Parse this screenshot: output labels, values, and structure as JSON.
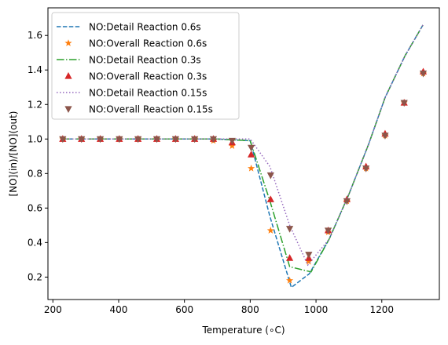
{
  "chart_data": {
    "type": "line",
    "title": "",
    "xlabel": "Temperature (∘C)",
    "ylabel": "[NO](in)/[NO](out)",
    "xlim": [
      185,
      1375
    ],
    "ylim": [
      0.07,
      1.76
    ],
    "xticks": [
      200,
      400,
      600,
      800,
      1000,
      1200
    ],
    "yticks": [
      0.2,
      0.4,
      0.6,
      0.8,
      1.0,
      1.2,
      1.4,
      1.6
    ],
    "xtick_labels": [
      "200",
      "400",
      "600",
      "800",
      "1000",
      "1200"
    ],
    "ytick_labels": [
      "0.2",
      "0.4",
      "0.6",
      "0.8",
      "1.0",
      "1.2",
      "1.4",
      "1.6"
    ],
    "grid": false,
    "legend_position": "top-left",
    "series": [
      {
        "name": "NO:Detail Reaction 0.6s",
        "kind": "line",
        "style": "dashed",
        "color": "#1f77b4",
        "x": [
          230,
          700,
          800,
          860,
          925,
          980,
          1040,
          1100,
          1160,
          1210,
          1270,
          1325
        ],
        "y": [
          1.0,
          1.0,
          0.99,
          0.55,
          0.14,
          0.22,
          0.42,
          0.68,
          0.97,
          1.24,
          1.48,
          1.66
        ]
      },
      {
        "name": "NO:Overall Reaction 0.6s",
        "kind": "scatter",
        "marker": "star",
        "color": "#ff7f0e",
        "x": [
          230,
          287,
          344,
          402,
          459,
          516,
          573,
          631,
          688,
          745,
          803,
          862,
          920,
          978,
          1037,
          1094,
          1152,
          1210,
          1268,
          1326
        ],
        "y": [
          1.0,
          1.0,
          1.0,
          1.0,
          1.0,
          1.0,
          1.0,
          1.0,
          0.99,
          0.96,
          0.83,
          0.47,
          0.18,
          0.29,
          0.46,
          0.64,
          0.83,
          1.02,
          1.21,
          1.38
        ]
      },
      {
        "name": "NO:Detail Reaction 0.3s",
        "kind": "line",
        "style": "dashdot",
        "color": "#2ca02c",
        "x": [
          230,
          700,
          800,
          860,
          920,
          985,
          1040,
          1100,
          1160,
          1210,
          1270,
          1325
        ],
        "y": [
          1.0,
          1.0,
          0.99,
          0.64,
          0.26,
          0.23,
          0.42,
          0.68,
          0.97,
          1.24,
          1.48,
          1.66
        ]
      },
      {
        "name": "NO:Overall Reaction 0.3s",
        "kind": "scatter",
        "marker": "triangle-up",
        "color": "#d62728",
        "x": [
          230,
          287,
          344,
          402,
          459,
          516,
          573,
          631,
          688,
          745,
          803,
          862,
          920,
          978,
          1037,
          1094,
          1152,
          1210,
          1268,
          1326
        ],
        "y": [
          1.0,
          1.0,
          1.0,
          1.0,
          1.0,
          1.0,
          1.0,
          1.0,
          1.0,
          0.98,
          0.91,
          0.65,
          0.31,
          0.31,
          0.47,
          0.65,
          0.84,
          1.03,
          1.21,
          1.39
        ]
      },
      {
        "name": "NO:Detail Reaction 0.15s",
        "kind": "line",
        "style": "dotted",
        "color": "#9467bd",
        "x": [
          230,
          700,
          800,
          860,
          920,
          975,
          1040,
          1100,
          1160,
          1210,
          1270,
          1325
        ],
        "y": [
          1.0,
          1.0,
          1.0,
          0.84,
          0.5,
          0.27,
          0.42,
          0.68,
          0.97,
          1.24,
          1.48,
          1.66
        ]
      },
      {
        "name": "NO:Overall Reaction 0.15s",
        "kind": "scatter",
        "marker": "triangle-down",
        "color": "#8c564b",
        "x": [
          230,
          287,
          344,
          402,
          459,
          516,
          573,
          631,
          688,
          745,
          803,
          862,
          920,
          978,
          1037,
          1094,
          1152,
          1210,
          1268,
          1326
        ],
        "y": [
          1.0,
          1.0,
          1.0,
          1.0,
          1.0,
          1.0,
          1.0,
          1.0,
          1.0,
          0.99,
          0.95,
          0.79,
          0.48,
          0.33,
          0.47,
          0.64,
          0.83,
          1.02,
          1.21,
          1.38
        ]
      }
    ]
  }
}
